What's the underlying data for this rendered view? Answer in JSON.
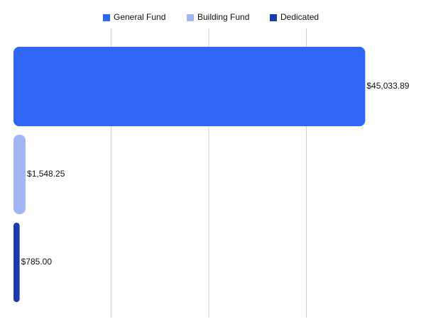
{
  "chart_data": {
    "type": "bar",
    "orientation": "horizontal",
    "legend": "top",
    "series": [
      {
        "name": "General Fund",
        "color": "#2f66f5",
        "values": [
          45033.89
        ],
        "value_labels": [
          "$45,033.89"
        ]
      },
      {
        "name": "Building Fund",
        "color": "#a3b5f2",
        "values": [
          1548.25
        ],
        "value_labels": [
          "$1,548.25"
        ]
      },
      {
        "name": "Dedicated",
        "color": "#1a3aad",
        "values": [
          785
        ],
        "value_labels": [
          "$785.00"
        ]
      }
    ],
    "xlim": [
      0,
      50000
    ],
    "xticks": [
      12500,
      25000,
      37500
    ],
    "grid": true
  }
}
